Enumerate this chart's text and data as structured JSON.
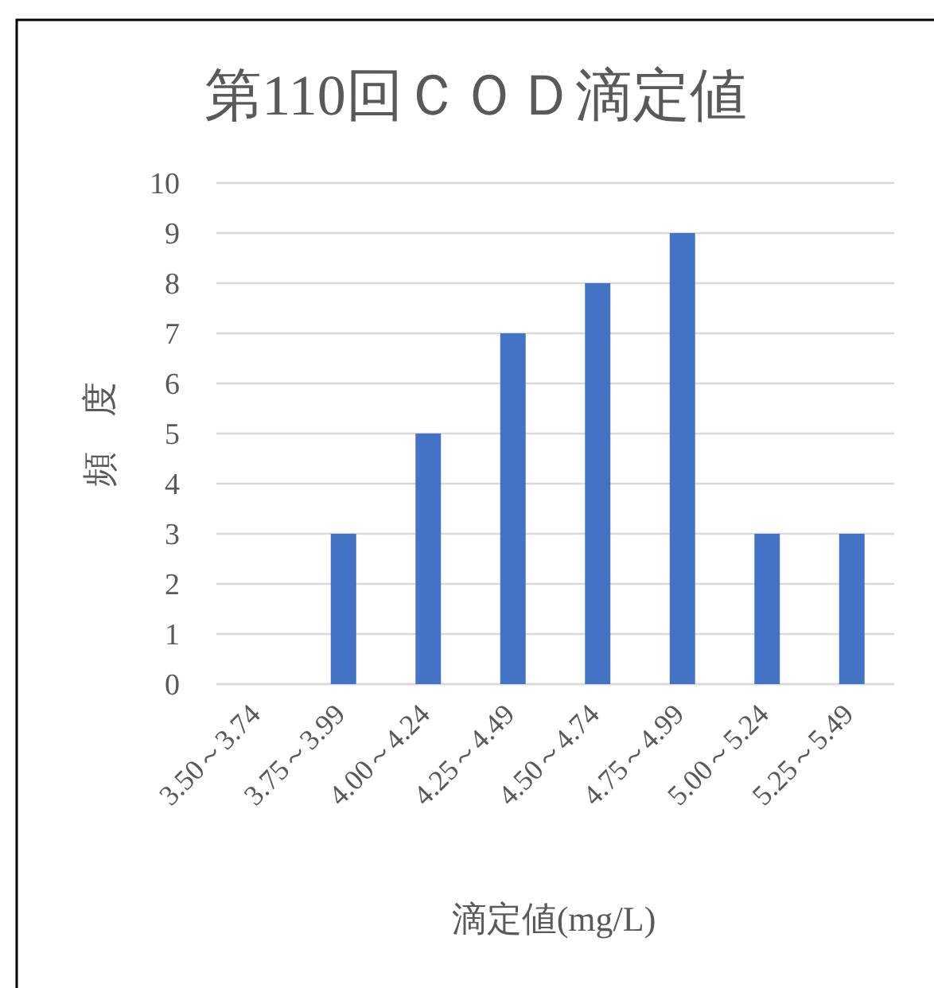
{
  "chart_data": {
    "type": "bar",
    "title": "第110回ＣＯＤ滴定値",
    "xlabel": "滴定値(mg/L)",
    "ylabel": "頻　度",
    "categories": [
      "3.50～3.74",
      "3.75～3.99",
      "4.00～4.24",
      "4.25～4.49",
      "4.50～4.74",
      "4.75～4.99",
      "5.00～5.24",
      "5.25～5.49"
    ],
    "values": [
      0,
      3,
      5,
      7,
      8,
      9,
      3,
      3
    ],
    "color": "#4472c4",
    "ylim": [
      0,
      10
    ],
    "yticks": [
      0,
      1,
      2,
      3,
      4,
      5,
      6,
      7,
      8,
      9,
      10
    ],
    "grid": "y"
  }
}
